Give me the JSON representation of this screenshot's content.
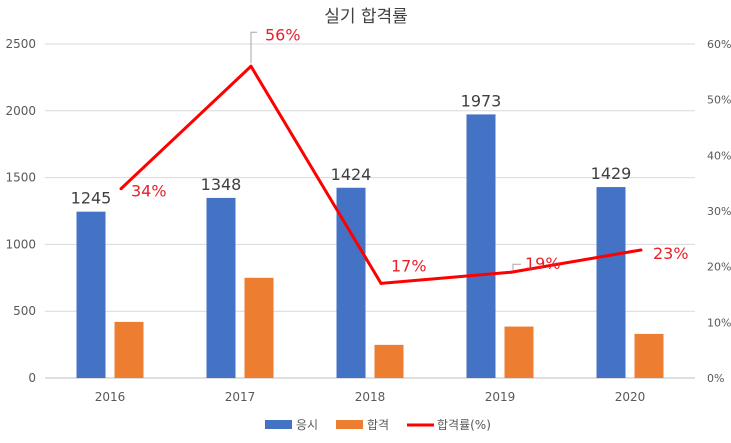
{
  "chart_data": {
    "type": "bar",
    "title": "실기 합격률",
    "categories": [
      "2016",
      "2017",
      "2018",
      "2019",
      "2020"
    ],
    "series": [
      {
        "name": "응시",
        "type": "bar",
        "axis": "left",
        "color": "#4472c4",
        "values": [
          1245,
          1348,
          1424,
          1973,
          1429
        ]
      },
      {
        "name": "합격",
        "type": "bar",
        "axis": "left",
        "color": "#ed7d31",
        "values": [
          420,
          750,
          248,
          385,
          330
        ]
      },
      {
        "name": "합격률(%)",
        "type": "line",
        "axis": "right",
        "color": "#ff0000",
        "values": [
          34,
          56,
          17,
          19,
          23
        ]
      }
    ],
    "bar_data_labels": [
      "1245",
      "1348",
      "1424",
      "1973",
      "1429"
    ],
    "line_data_labels": [
      "34%",
      "56%",
      "17%",
      "19%",
      "23%"
    ],
    "y_left": {
      "min": 0,
      "max": 2500,
      "ticks": [
        "0",
        "500",
        "1000",
        "1500",
        "2000",
        "2500"
      ]
    },
    "y_right": {
      "min": 0,
      "max": 60,
      "ticks": [
        "0%",
        "10%",
        "20%",
        "30%",
        "40%",
        "50%",
        "60%"
      ]
    },
    "grid": true,
    "legend_position": "bottom"
  }
}
